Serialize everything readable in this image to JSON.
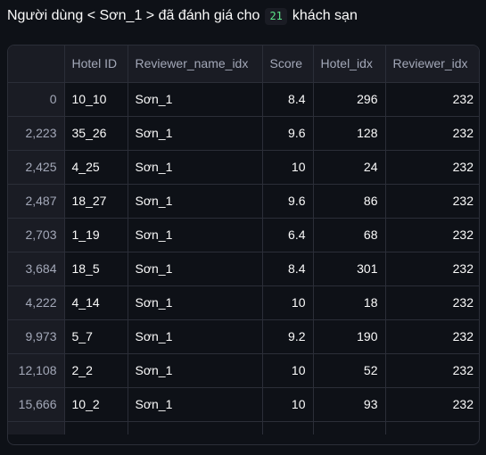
{
  "heading": {
    "prefix": "Người dùng < Sơn_1 > đã đánh giá cho",
    "count": "21",
    "suffix": "khách sạn"
  },
  "table": {
    "columns": [
      "",
      "Hotel ID",
      "Reviewer_name_idx",
      "Score",
      "Hotel_idx",
      "Reviewer_idx"
    ],
    "rows": [
      [
        "0",
        "10_10",
        "Sơn_1",
        "8.4",
        "296",
        "232"
      ],
      [
        "2,223",
        "35_26",
        "Sơn_1",
        "9.6",
        "128",
        "232"
      ],
      [
        "2,425",
        "4_25",
        "Sơn_1",
        "10",
        "24",
        "232"
      ],
      [
        "2,487",
        "18_27",
        "Sơn_1",
        "9.6",
        "86",
        "232"
      ],
      [
        "2,703",
        "1_19",
        "Sơn_1",
        "6.4",
        "68",
        "232"
      ],
      [
        "3,684",
        "18_5",
        "Sơn_1",
        "8.4",
        "301",
        "232"
      ],
      [
        "4,222",
        "4_14",
        "Sơn_1",
        "10",
        "18",
        "232"
      ],
      [
        "9,973",
        "5_7",
        "Sơn_1",
        "9.2",
        "190",
        "232"
      ],
      [
        "12,108",
        "2_2",
        "Sơn_1",
        "10",
        "52",
        "232"
      ],
      [
        "15,666",
        "10_2",
        "Sơn_1",
        "10",
        "93",
        "232"
      ]
    ]
  },
  "colors": {
    "background": "#0e1117",
    "header_bg": "#1a1c24",
    "border": "#2b2e38",
    "code_text": "#5ce488"
  }
}
